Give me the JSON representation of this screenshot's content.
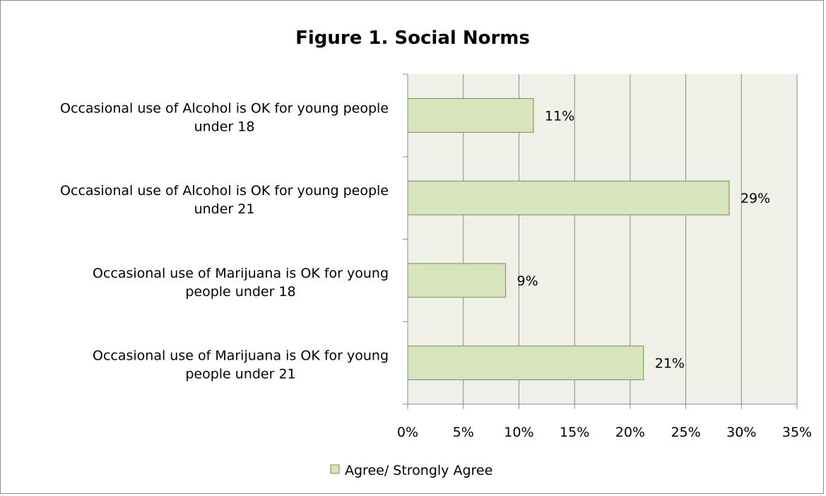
{
  "chart_data": {
    "type": "bar",
    "orientation": "horizontal",
    "title": "Figure 1. Social Norms",
    "xlabel": "",
    "ylabel": "",
    "categories": [
      [
        "Occasional use of Alcohol is OK for young people",
        "under 18"
      ],
      [
        "Occasional use of Alcohol is OK for young people",
        "under 21"
      ],
      [
        "Occasional use of Marijuana is OK for young",
        "people under 18"
      ],
      [
        "Occasional use of Marijuana is OK for young",
        "people under 21"
      ]
    ],
    "series": [
      {
        "name": "Agree/ Strongly Agree",
        "values": [
          11.3,
          28.9,
          8.8,
          21.2
        ],
        "data_labels": [
          "11%",
          "29%",
          "9%",
          "21%"
        ],
        "fill": "#d8e4bc",
        "stroke": "#76923c"
      }
    ],
    "xlim": [
      0,
      35
    ],
    "x_ticks": [
      "0%",
      "5%",
      "10%",
      "15%",
      "20%",
      "25%",
      "30%",
      "35%"
    ],
    "grid": true,
    "legend": "bottom",
    "colors": {
      "plot_background": "#eff1e8",
      "gridline": "#8c8c8c",
      "axis": "#8c8c8c",
      "frame": "#8c8c8c"
    }
  }
}
